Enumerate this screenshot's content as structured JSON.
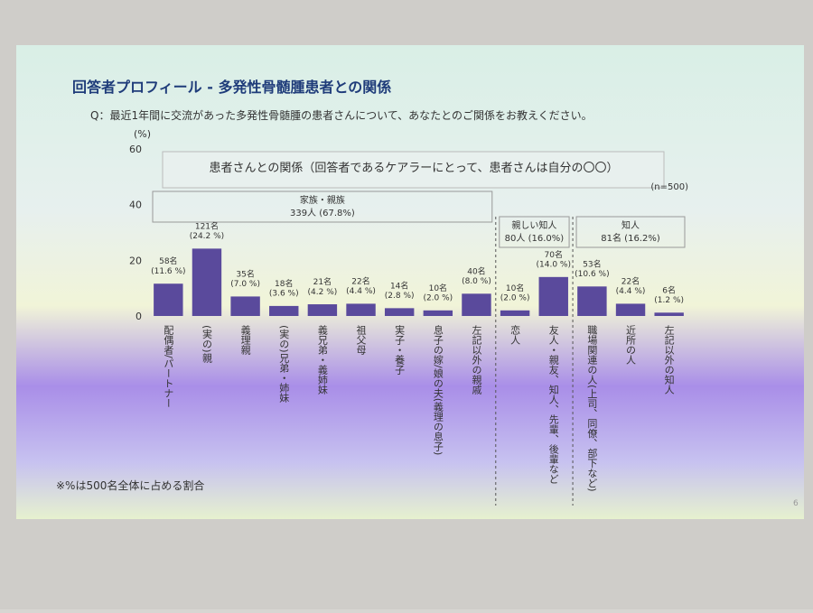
{
  "header": {
    "title": "回答者プロフィール - 多発性骨髄腫患者との関係",
    "question": "Q：最近1年間に交流があった多発性骨髄腫の患者さんについて、あなたとのご関係をお教えください。"
  },
  "chart_data": {
    "type": "bar",
    "title": "患者さんとの関係（回答者であるケアラーにとって、患者さんは自分の〇〇）",
    "sample_size": "(n=500)",
    "y_axis_label": "(%)",
    "categories": [
      "配偶者/パートナー",
      "(実の)親",
      "義理親",
      "(実の)兄弟・姉妹",
      "義兄弟・義姉妹",
      "祖父母",
      "実子・養子",
      "息子の嫁/娘の夫(義理の息子)",
      "左記以外の親戚",
      "恋人",
      "友人・親友、知人、先輩、後輩など",
      "職場関連の人(上司、同僚、部下など)",
      "近所の人",
      "左記以外の知人"
    ],
    "values": [
      11.6,
      24.2,
      7.0,
      3.6,
      4.2,
      4.4,
      2.8,
      2.0,
      8.0,
      2.0,
      14.0,
      10.6,
      4.4,
      1.2
    ],
    "value_labels": [
      "58名\n(11.6 %)",
      "121名\n(24.2 %)",
      "35名\n(7.0 %)",
      "18名\n(3.6 %)",
      "21名\n(4.2 %)",
      "22名\n(4.4 %)",
      "14名\n(2.8 %)",
      "10名\n(2.0 %)",
      "40名\n(8.0 %)",
      "10名\n(2.0 %)",
      "70名\n(14.0 %)",
      "53名\n(10.6 %)",
      "22名\n(4.4 %)",
      "6名\n(1.2 %)"
    ],
    "groups": [
      {
        "name": "家族・親族",
        "label": "339人 (67.8%)"
      },
      {
        "name": "親しい知人",
        "label": "80人 (16.0%)"
      },
      {
        "name": "知人",
        "label": "81名 (16.2%)"
      }
    ],
    "color": "#5a4a9c",
    "ylim": [
      0,
      60
    ],
    "yticks": [
      0,
      20,
      40,
      60
    ],
    "grid": false
  },
  "footer": {
    "note": "※%は500名全体に占める割合",
    "page": "6"
  }
}
